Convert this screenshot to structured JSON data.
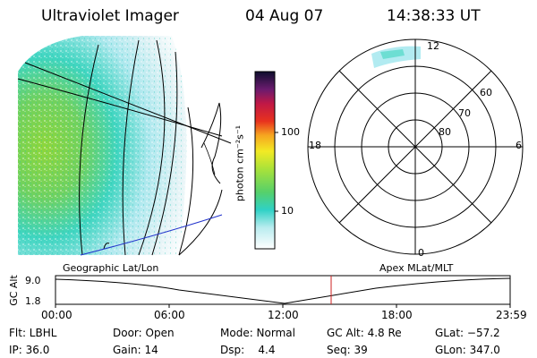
{
  "header": {
    "instrument": "Ultraviolet Imager",
    "date": "04 Aug 07",
    "time": "14:38:33 UT"
  },
  "colorbar": {
    "label": "photon cm⁻²s⁻¹",
    "ticks": [
      "100",
      "10"
    ]
  },
  "polar": {
    "mlt_labels": {
      "top": "12",
      "left": "18",
      "right": "6",
      "bottom": "0"
    },
    "lat_labels": [
      "60",
      "70",
      "80"
    ]
  },
  "timeline": {
    "ylabel": "GC Alt",
    "yticks": [
      "9.0",
      "1.8"
    ],
    "left_label": "Geographic Lat/Lon",
    "right_label": "Apex MLat/MLT",
    "xticks": [
      "00:00",
      "06:00",
      "12:00",
      "18:00",
      "23:59"
    ]
  },
  "info": {
    "flt": "Flt: LBHL",
    "ip": "IP: 36.0",
    "door": "Door: Open",
    "gain": "Gain: 14",
    "mode": "Mode: Normal",
    "dsp": "Dsp:    4.4",
    "gcalt": "GC Alt: 4.8 Re",
    "seq": "Seq: 39",
    "glat": "GLat: −57.2",
    "glon": "GLon: 347.0"
  },
  "colors": {
    "marker": "#cc2222",
    "coast_blue": "#2233cc"
  }
}
